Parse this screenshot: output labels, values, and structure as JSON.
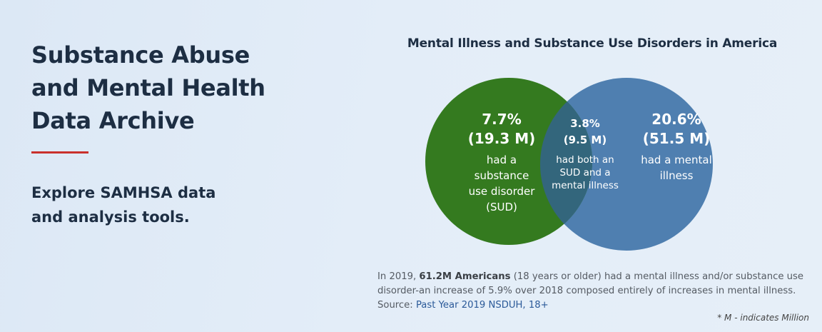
{
  "header": {
    "title_lines": [
      "Substance Abuse",
      "and Mental Health",
      "Data Archive"
    ],
    "tagline_lines": [
      "Explore SAMHSA data",
      "and analysis tools."
    ]
  },
  "venn": {
    "title": "Mental Illness and Substance Use Disorders in America",
    "colors": {
      "sud": "#347a1f",
      "mental_illness": "#4f7fb0",
      "overlap": "#33667c"
    },
    "sud": {
      "percent": "7.7%",
      "count": "(19.3 M)",
      "label_lines": [
        "had a",
        "substance",
        "use disorder",
        "(SUD)"
      ]
    },
    "both": {
      "percent": "3.8%",
      "count": "(9.5 M)",
      "label_lines": [
        "had both an",
        "SUD and a",
        "mental illness"
      ]
    },
    "mental_illness": {
      "percent": "20.6%",
      "count": "(51.5 M)",
      "label_lines": [
        "had a mental",
        "illness"
      ]
    }
  },
  "caption": {
    "prefix": "In 2019, ",
    "bold": "61.2M Americans",
    "suffix": " (18 years or older) had a mental illness and/or substance use",
    "line2": "disorder-an increase of 5.9% over 2018 composed entirely of increases in mental illness.",
    "source_label": "Source: ",
    "source_link": "Past Year 2019 NSDUH, 18+"
  },
  "footnote": "* M - indicates Million"
}
